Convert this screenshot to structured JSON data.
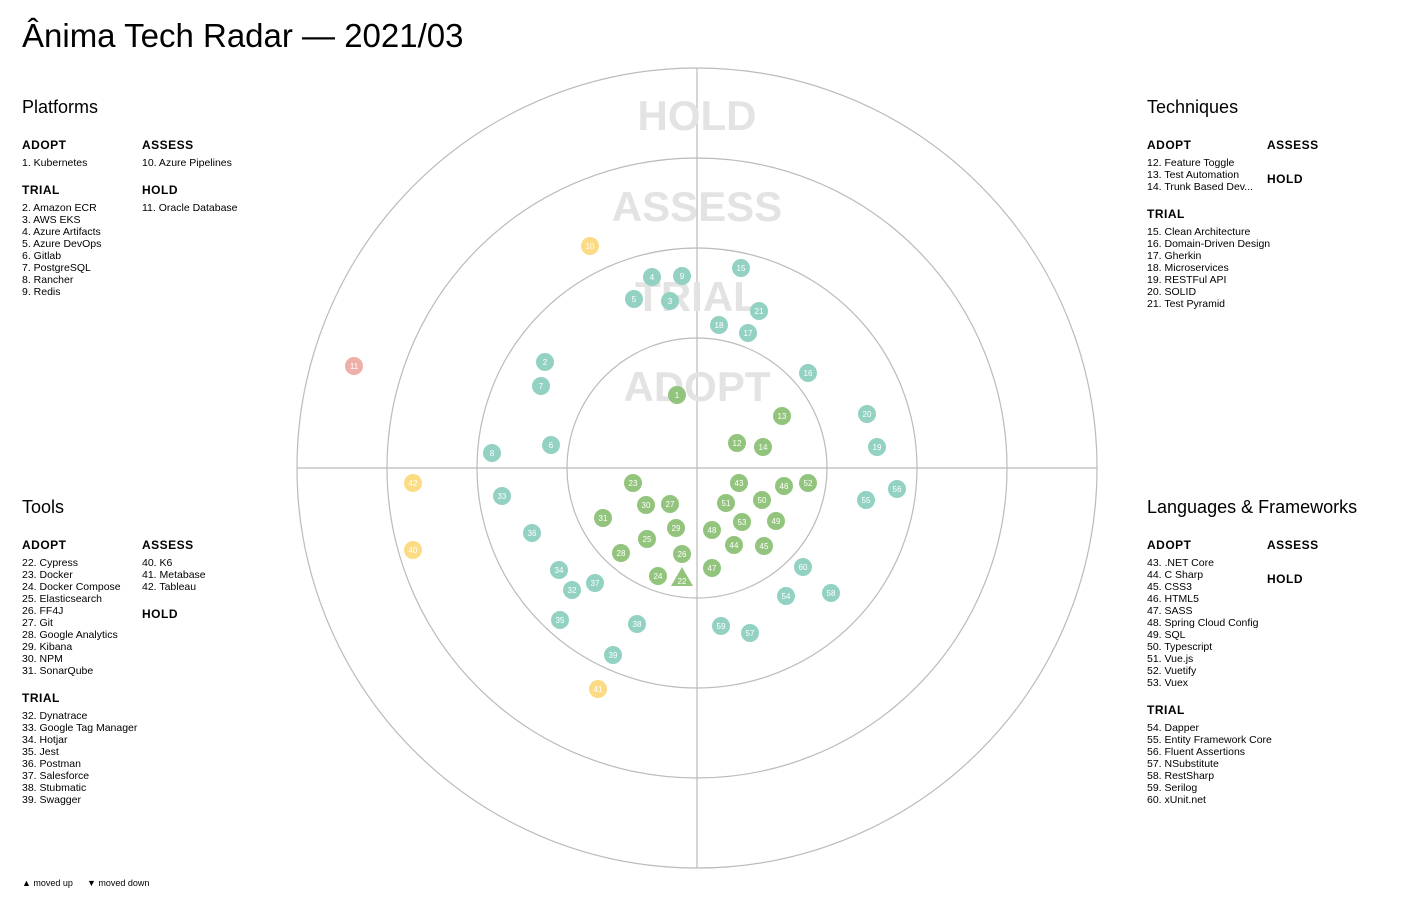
{
  "title": "Ânima Tech Radar — 2021/03",
  "rings": [
    "ADOPT",
    "TRIAL",
    "ASSESS",
    "HOLD"
  ],
  "ring_colors": [
    "#93c47d",
    "#93d2c2",
    "#fbdb84",
    "#efafa9"
  ],
  "quadrants": [
    {
      "name": "Platforms",
      "columns": [
        [
          {
            "label": "ADOPT",
            "items": [
              "1. Kubernetes"
            ]
          },
          {
            "label": "TRIAL",
            "items": [
              "2. Amazon ECR",
              "3. AWS EKS",
              "4. Azure Artifacts",
              "5. Azure DevOps",
              "6. Gitlab",
              "7. PostgreSQL",
              "8. Rancher",
              "9. Redis"
            ]
          }
        ],
        [
          {
            "label": "ASSESS",
            "items": [
              "10. Azure Pipelines"
            ]
          },
          {
            "label": "HOLD",
            "items": [
              "11. Oracle Database"
            ]
          }
        ]
      ]
    },
    {
      "name": "Techniques",
      "columns": [
        [
          {
            "label": "ADOPT",
            "items": [
              "12. Feature Toggle",
              "13. Test Automation",
              "14. Trunk Based Dev..."
            ]
          },
          {
            "label": "TRIAL",
            "items": [
              "15. Clean Architecture",
              "16. Domain-Driven Design",
              "17. Gherkin",
              "18. Microservices",
              "19. RESTFul API",
              "20. SOLID",
              "21. Test Pyramid"
            ]
          }
        ],
        [
          {
            "label": "ASSESS",
            "items": []
          },
          {
            "label": "HOLD",
            "items": []
          }
        ]
      ]
    },
    {
      "name": "Tools",
      "columns": [
        [
          {
            "label": "ADOPT",
            "items": [
              "22. Cypress",
              "23. Docker",
              "24. Docker Compose",
              "25. Elasticsearch",
              "26. FF4J",
              "27. Git",
              "28. Google Analytics",
              "29. Kibana",
              "30. NPM",
              "31. SonarQube"
            ]
          },
          {
            "label": "TRIAL",
            "items": [
              "32. Dynatrace",
              "33. Google Tag Manager",
              "34. Hotjar",
              "35. Jest",
              "36. Postman",
              "37. Salesforce",
              "38. Stubmatic",
              "39. Swagger"
            ]
          }
        ],
        [
          {
            "label": "ASSESS",
            "items": [
              "40. K6",
              "41. Metabase",
              "42. Tableau"
            ]
          },
          {
            "label": "HOLD",
            "items": []
          }
        ]
      ]
    },
    {
      "name": "Languages & Frameworks",
      "columns": [
        [
          {
            "label": "ADOPT",
            "items": [
              "43. .NET Core",
              "44. C Sharp",
              "45. CSS3",
              "46. HTML5",
              "47. SASS",
              "48. Spring Cloud Config",
              "49. SQL",
              "50. Typescript",
              "51. Vue.js",
              "52. Vuetify",
              "53. Vuex"
            ]
          },
          {
            "label": "TRIAL",
            "items": [
              "54. Dapper",
              "55. Entity Framework Core",
              "56. Fluent Assertions",
              "57. NSubstitute",
              "58. RestSharp",
              "59. Serilog",
              "60. xUnit.net"
            ]
          }
        ],
        [
          {
            "label": "ASSESS",
            "items": []
          },
          {
            "label": "HOLD",
            "items": []
          }
        ]
      ]
    }
  ],
  "blips": [
    {
      "id": "1",
      "ring": 0,
      "x": -20,
      "y": -73
    },
    {
      "id": "2",
      "ring": 1,
      "x": -152,
      "y": -106
    },
    {
      "id": "3",
      "ring": 1,
      "x": -27,
      "y": -167
    },
    {
      "id": "4",
      "ring": 1,
      "x": -45,
      "y": -191
    },
    {
      "id": "5",
      "ring": 1,
      "x": -63,
      "y": -169
    },
    {
      "id": "6",
      "ring": 1,
      "x": -146,
      "y": -23
    },
    {
      "id": "7",
      "ring": 1,
      "x": -156,
      "y": -82
    },
    {
      "id": "8",
      "ring": 1,
      "x": -205,
      "y": -15
    },
    {
      "id": "9",
      "ring": 1,
      "x": -15,
      "y": -192
    },
    {
      "id": "10",
      "ring": 2,
      "x": -107,
      "y": -222
    },
    {
      "id": "11",
      "ring": 3,
      "x": -343,
      "y": -102
    },
    {
      "id": "12",
      "ring": 0,
      "x": 40,
      "y": -25
    },
    {
      "id": "13",
      "ring": 0,
      "x": 85,
      "y": -52
    },
    {
      "id": "14",
      "ring": 0,
      "x": 66,
      "y": -21
    },
    {
      "id": "15",
      "ring": 1,
      "x": 44,
      "y": -200
    },
    {
      "id": "16",
      "ring": 1,
      "x": 111,
      "y": -95
    },
    {
      "id": "17",
      "ring": 1,
      "x": 51,
      "y": -135
    },
    {
      "id": "18",
      "ring": 1,
      "x": 22,
      "y": -143
    },
    {
      "id": "19",
      "ring": 1,
      "x": 180,
      "y": -21
    },
    {
      "id": "20",
      "ring": 1,
      "x": 170,
      "y": -54
    },
    {
      "id": "21",
      "ring": 1,
      "x": 62,
      "y": -157
    },
    {
      "id": "22",
      "ring": 0,
      "x": -15,
      "y": 111,
      "shape": "triangle-up"
    },
    {
      "id": "23",
      "ring": 0,
      "x": -64,
      "y": 15
    },
    {
      "id": "24",
      "ring": 0,
      "x": -39,
      "y": 108
    },
    {
      "id": "25",
      "ring": 0,
      "x": -50,
      "y": 71
    },
    {
      "id": "26",
      "ring": 0,
      "x": -15,
      "y": 86
    },
    {
      "id": "27",
      "ring": 0,
      "x": -27,
      "y": 36
    },
    {
      "id": "28",
      "ring": 0,
      "x": -76,
      "y": 85
    },
    {
      "id": "29",
      "ring": 0,
      "x": -21,
      "y": 60
    },
    {
      "id": "30",
      "ring": 0,
      "x": -51,
      "y": 37
    },
    {
      "id": "31",
      "ring": 0,
      "x": -94,
      "y": 50
    },
    {
      "id": "32",
      "ring": 1,
      "x": -125,
      "y": 122
    },
    {
      "id": "33",
      "ring": 1,
      "x": -195,
      "y": 28
    },
    {
      "id": "34",
      "ring": 1,
      "x": -138,
      "y": 102
    },
    {
      "id": "35",
      "ring": 1,
      "x": -137,
      "y": 152
    },
    {
      "id": "36",
      "ring": 1,
      "x": -165,
      "y": 65
    },
    {
      "id": "37",
      "ring": 1,
      "x": -102,
      "y": 115
    },
    {
      "id": "38",
      "ring": 1,
      "x": -60,
      "y": 156
    },
    {
      "id": "39",
      "ring": 1,
      "x": -84,
      "y": 187
    },
    {
      "id": "40",
      "ring": 2,
      "x": -284,
      "y": 82
    },
    {
      "id": "41",
      "ring": 2,
      "x": -99,
      "y": 221
    },
    {
      "id": "42",
      "ring": 2,
      "x": -284,
      "y": 15
    },
    {
      "id": "43",
      "ring": 0,
      "x": 42,
      "y": 15
    },
    {
      "id": "44",
      "ring": 0,
      "x": 37,
      "y": 77
    },
    {
      "id": "45",
      "ring": 0,
      "x": 67,
      "y": 78
    },
    {
      "id": "46",
      "ring": 0,
      "x": 87,
      "y": 18
    },
    {
      "id": "47",
      "ring": 0,
      "x": 15,
      "y": 100
    },
    {
      "id": "48",
      "ring": 0,
      "x": 15,
      "y": 62
    },
    {
      "id": "49",
      "ring": 0,
      "x": 79,
      "y": 53
    },
    {
      "id": "50",
      "ring": 0,
      "x": 65,
      "y": 32
    },
    {
      "id": "51",
      "ring": 0,
      "x": 29,
      "y": 35
    },
    {
      "id": "52",
      "ring": 0,
      "x": 111,
      "y": 15
    },
    {
      "id": "53",
      "ring": 0,
      "x": 45,
      "y": 54
    },
    {
      "id": "54",
      "ring": 1,
      "x": 89,
      "y": 128
    },
    {
      "id": "55",
      "ring": 1,
      "x": 169,
      "y": 32
    },
    {
      "id": "56",
      "ring": 1,
      "x": 200,
      "y": 21
    },
    {
      "id": "57",
      "ring": 1,
      "x": 53,
      "y": 165
    },
    {
      "id": "58",
      "ring": 1,
      "x": 134,
      "y": 125
    },
    {
      "id": "59",
      "ring": 1,
      "x": 24,
      "y": 158
    },
    {
      "id": "60",
      "ring": 1,
      "x": 106,
      "y": 99
    }
  ],
  "legend": {
    "moved_up": "▲ moved up",
    "moved_down": "▼ moved down"
  }
}
